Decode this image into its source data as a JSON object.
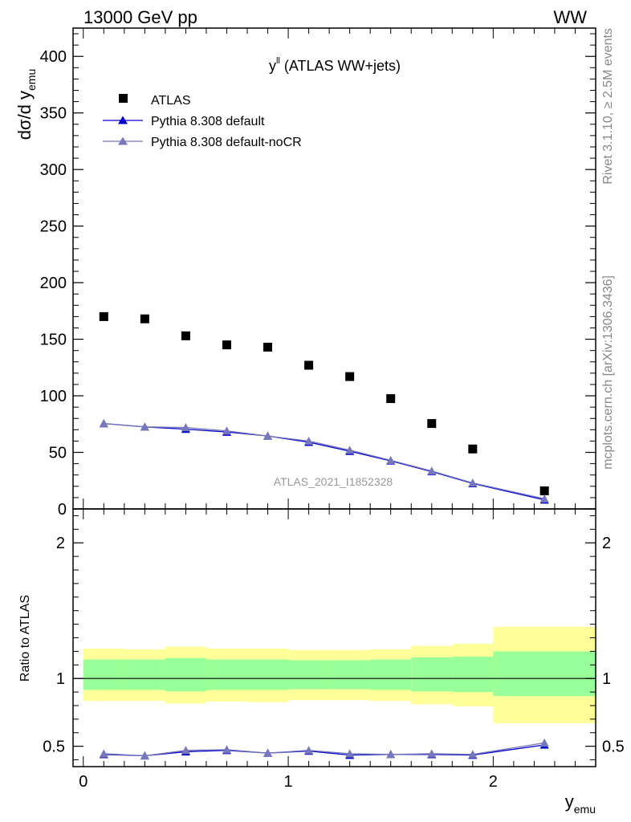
{
  "header": {
    "left": "13000 GeV pp",
    "right": "WW"
  },
  "side_text": {
    "rivet": "Rivet 3.1.10, ≥ 2.5M events",
    "mcplots": "mcplots.cern.ch [arXiv:1306.3436]"
  },
  "chart_data": {
    "type": "scatter",
    "title": "y^ll (ATLAS WW+jets)",
    "title_base": "y",
    "title_sup": "ll",
    "title_rest": " (ATLAS WW+jets)",
    "watermark": "ATLAS_2021_I1852328",
    "x_label_base": "y",
    "x_label_sub": "emu",
    "y_label_base": "dσ/d y",
    "y_label_sub": "emu",
    "ratio_ylabel": "Ratio to ATLAS",
    "xlim": [
      -0.05,
      2.5
    ],
    "ylim": [
      0,
      425
    ],
    "ratio_ylim": [
      0.35,
      2.25
    ],
    "x_ticks": [
      "0",
      "1",
      "2"
    ],
    "y_ticks": [
      "0",
      "50",
      "100",
      "150",
      "200",
      "250",
      "300",
      "350",
      "400"
    ],
    "ratio_ticks": [
      "0.5",
      "1",
      "2"
    ],
    "bin_edges": [
      0.0,
      0.2,
      0.4,
      0.6,
      0.8,
      1.0,
      1.2,
      1.4,
      1.6,
      1.8,
      2.0,
      2.5
    ],
    "x": [
      0.1,
      0.3,
      0.5,
      0.7,
      0.9,
      1.1,
      1.3,
      1.5,
      1.7,
      1.9,
      2.25
    ],
    "legend": [
      "ATLAS",
      "Pythia 8.308 default",
      "Pythia 8.308 default-noCR"
    ],
    "series": [
      {
        "name": "ATLAS",
        "marker": "square",
        "color": "#000000",
        "values": [
          170,
          168,
          153,
          145,
          143,
          127,
          117,
          97.5,
          75.5,
          53,
          16
        ]
      },
      {
        "name": "Pythia 8.308 default",
        "marker": "triangle",
        "color": "#0000cc",
        "values": [
          75.5,
          72.5,
          70.5,
          68,
          64.5,
          59,
          51,
          42.5,
          33,
          22.5,
          8
        ]
      },
      {
        "name": "Pythia 8.308 default-noCR",
        "marker": "triangle",
        "color": "#7777bb",
        "values": [
          75.5,
          72.5,
          72,
          69,
          64.5,
          60,
          52,
          43,
          33.5,
          23,
          9
        ]
      }
    ],
    "ratio_series": [
      {
        "name": "Pythia 8.308 default",
        "color": "#0000cc",
        "values": [
          0.44,
          0.43,
          0.46,
          0.47,
          0.45,
          0.465,
          0.435,
          0.44,
          0.44,
          0.435,
          0.51
        ]
      },
      {
        "name": "Pythia 8.308 default-noCR",
        "color": "#7777bb",
        "values": [
          0.445,
          0.43,
          0.47,
          0.475,
          0.45,
          0.47,
          0.445,
          0.44,
          0.445,
          0.44,
          0.525
        ]
      }
    ],
    "ratio_band_inner": [
      [
        0.915,
        1.14
      ],
      [
        0.915,
        1.14
      ],
      [
        0.905,
        1.15
      ],
      [
        0.915,
        1.14
      ],
      [
        0.915,
        1.14
      ],
      [
        0.92,
        1.135
      ],
      [
        0.92,
        1.135
      ],
      [
        0.915,
        1.14
      ],
      [
        0.905,
        1.155
      ],
      [
        0.9,
        1.16
      ],
      [
        0.87,
        1.2
      ]
    ],
    "ratio_band_outer": [
      [
        0.835,
        1.22
      ],
      [
        0.835,
        1.215
      ],
      [
        0.815,
        1.235
      ],
      [
        0.83,
        1.22
      ],
      [
        0.825,
        1.22
      ],
      [
        0.84,
        1.21
      ],
      [
        0.84,
        1.21
      ],
      [
        0.835,
        1.215
      ],
      [
        0.81,
        1.24
      ],
      [
        0.795,
        1.255
      ],
      [
        0.67,
        1.38
      ]
    ],
    "colors": {
      "band_inner": "#99ff99",
      "band_outer": "#ffff99"
    }
  }
}
